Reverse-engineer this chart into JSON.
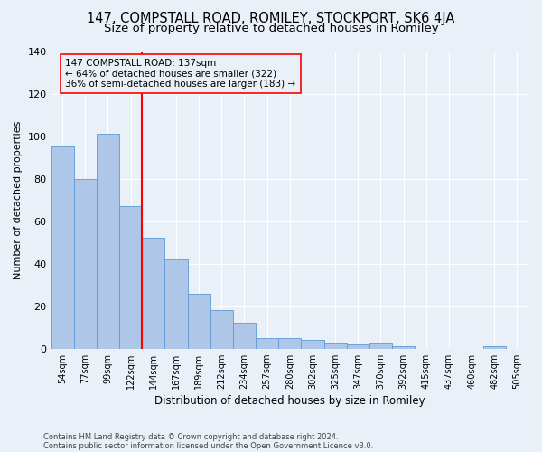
{
  "title1": "147, COMPSTALL ROAD, ROMILEY, STOCKPORT, SK6 4JA",
  "title2": "Size of property relative to detached houses in Romiley",
  "xlabel": "Distribution of detached houses by size in Romiley",
  "ylabel": "Number of detached properties",
  "categories": [
    "54sqm",
    "77sqm",
    "99sqm",
    "122sqm",
    "144sqm",
    "167sqm",
    "189sqm",
    "212sqm",
    "234sqm",
    "257sqm",
    "280sqm",
    "302sqm",
    "325sqm",
    "347sqm",
    "370sqm",
    "392sqm",
    "415sqm",
    "437sqm",
    "460sqm",
    "482sqm",
    "505sqm"
  ],
  "values": [
    95,
    80,
    101,
    67,
    52,
    42,
    26,
    18,
    12,
    5,
    5,
    4,
    3,
    2,
    3,
    1,
    0,
    0,
    0,
    1,
    0
  ],
  "bar_color": "#aec6e8",
  "bar_edge_color": "#5b9bd5",
  "ref_bar_index": 4,
  "reference_line_label": "147 COMPSTALL ROAD: 137sqm",
  "annotation_line1": "← 64% of detached houses are smaller (322)",
  "annotation_line2": "36% of semi-detached houses are larger (183) →",
  "ylim": [
    0,
    140
  ],
  "yticks": [
    0,
    20,
    40,
    60,
    80,
    100,
    120,
    140
  ],
  "footer1": "Contains HM Land Registry data © Crown copyright and database right 2024.",
  "footer2": "Contains public sector information licensed under the Open Government Licence v3.0.",
  "bg_color": "#eaf0f8",
  "grid_color": "white",
  "title1_fontsize": 10.5,
  "title2_fontsize": 9.5
}
